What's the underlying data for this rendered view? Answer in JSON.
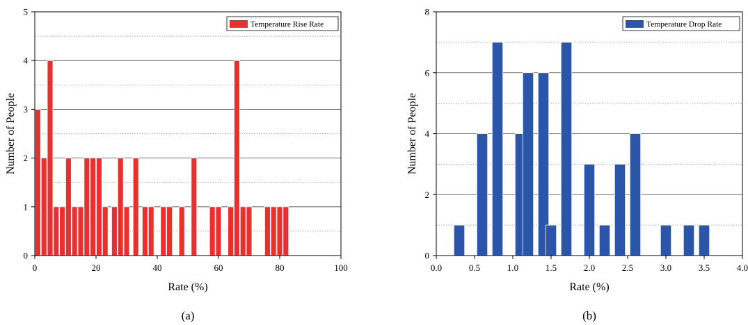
{
  "chart_data": [
    {
      "type": "bar",
      "panel_label": "(a)",
      "xlabel": "Rate (%)",
      "ylabel": "Number of People",
      "xlim": [
        0,
        100
      ],
      "ylim": [
        0,
        5
      ],
      "x_ticks": [
        "0",
        "20",
        "40",
        "60",
        "80",
        "100"
      ],
      "y_ticks": [
        "0",
        "1",
        "2",
        "3",
        "4",
        "5"
      ],
      "grid": "horizontal major solid, minor dotted",
      "legend_position": "top-right",
      "bar_width": 1.8,
      "series": [
        {
          "name": "Temperature Rise Rate",
          "color": "#e8302e",
          "x": [
            1,
            3,
            5,
            7,
            9,
            11,
            13,
            15,
            17,
            19,
            21,
            23,
            26,
            28,
            30,
            33,
            36,
            38,
            42,
            44,
            48,
            52,
            58,
            60,
            64,
            66,
            68,
            70,
            76,
            78,
            80,
            82
          ],
          "values": [
            3,
            2,
            4,
            1,
            1,
            2,
            1,
            1,
            2,
            2,
            2,
            1,
            1,
            2,
            1,
            2,
            1,
            1,
            1,
            1,
            1,
            2,
            1,
            1,
            1,
            4,
            1,
            1,
            1,
            1,
            1,
            1
          ]
        }
      ]
    },
    {
      "type": "bar",
      "panel_label": "(b)",
      "xlabel": "Rate (%)",
      "ylabel": "Number of People",
      "xlim": [
        0,
        4
      ],
      "ylim": [
        0,
        8
      ],
      "x_ticks": [
        "0.0",
        "0.5",
        "1.0",
        "1.5",
        "2.0",
        "2.5",
        "3.0",
        "3.5",
        "4.0"
      ],
      "y_ticks": [
        "0",
        "2",
        "4",
        "6",
        "8"
      ],
      "grid": "horizontal major solid, minor dotted",
      "legend_position": "top-right",
      "bar_width": 0.14,
      "series": [
        {
          "name": "Temperature Drop Rate",
          "color": "#2a55a8",
          "x": [
            0.3,
            0.6,
            0.8,
            1.1,
            1.2,
            1.4,
            1.5,
            1.7,
            2.0,
            2.2,
            2.4,
            2.6,
            3.0,
            3.3,
            3.5
          ],
          "values": [
            1,
            4,
            7,
            4,
            6,
            6,
            1,
            7,
            3,
            1,
            3,
            4,
            1,
            1,
            1
          ]
        }
      ]
    }
  ]
}
